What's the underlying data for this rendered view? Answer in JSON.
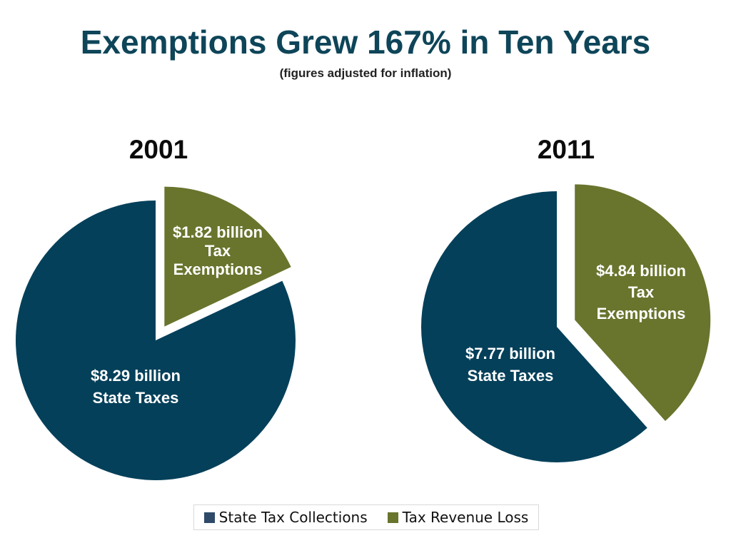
{
  "colors": {
    "state_taxes": "#05405a",
    "exemptions": "#69742d",
    "legend_state_tax_collections": "#2e4a68"
  },
  "chart_data": {
    "type": "pie",
    "title": "Exemptions Grew 167% in Ten Years",
    "subtitle": "(figures adjusted for inflation)",
    "legend": {
      "placement": "bottom",
      "entries": [
        {
          "name": "State Tax Collections",
          "color": "#2e4a68"
        },
        {
          "name": "Tax Revenue Loss",
          "color": "#69742d"
        }
      ]
    },
    "pies": [
      {
        "title": "2001",
        "slices": [
          {
            "key": "exemptions",
            "value": 1.82,
            "label_lines": [
              "$1.82 billion",
              "Tax",
              "Exemptions"
            ],
            "color": "#69742d",
            "exploded": true
          },
          {
            "key": "state_taxes",
            "value": 8.29,
            "label_lines": [
              "$8.29 billion",
              "State Taxes"
            ],
            "color": "#05405a",
            "exploded": false
          }
        ]
      },
      {
        "title": "2011",
        "slices": [
          {
            "key": "exemptions",
            "value": 4.84,
            "label_lines": [
              "$4.84 billion",
              "Tax",
              "Exemptions"
            ],
            "color": "#69742d",
            "exploded": true
          },
          {
            "key": "state_taxes",
            "value": 7.77,
            "label_lines": [
              "$7.77 billion",
              "State Taxes"
            ],
            "color": "#05405a",
            "exploded": false
          }
        ]
      }
    ]
  }
}
